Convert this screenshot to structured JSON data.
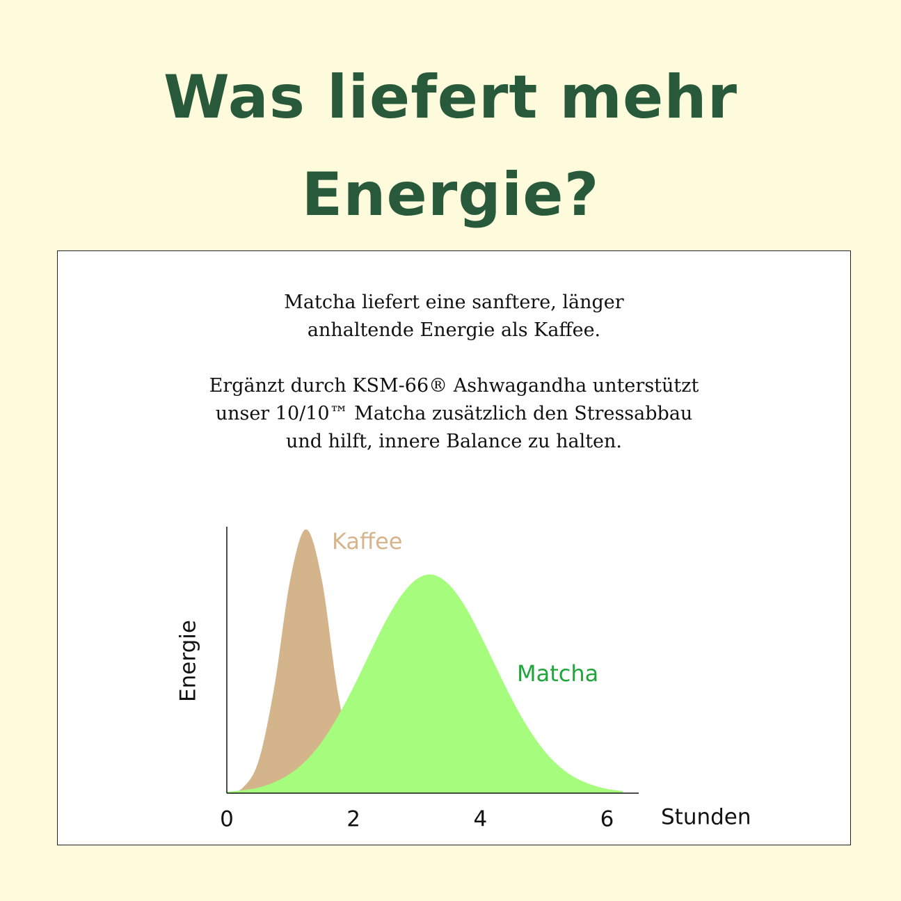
{
  "intro": {
    "paragraphs": [
      [
        "Matcha liefert eine sanftere, länger",
        "anhaltende Energie als Kaffee."
      ],
      [
        "Ergänzt durch KSM-66® Ashwagandha unterstützt",
        "unser 10/10™ Matcha zusätzlich den Stressabbau",
        "und hilft, innere Balance zu halten."
      ]
    ]
  },
  "chart_data": {
    "type": "area",
    "title": "Was liefert mehr Energie?",
    "x_label": "Stunden",
    "y_label": "Energie",
    "x": [
      0,
      0.25,
      0.5,
      0.75,
      1,
      1.25,
      1.5,
      1.75,
      2,
      2.25,
      2.5,
      2.75,
      3,
      3.25,
      3.5,
      3.75,
      4,
      4.25,
      4.5,
      4.75,
      5,
      5.25,
      5.5,
      5.75,
      6,
      6.25
    ],
    "series": [
      {
        "name": "Kaffee",
        "color": "#d3b48b",
        "label_color": "#d6b58c",
        "values": [
          0,
          2,
          12,
          40,
          80,
          99,
          80,
          38,
          12,
          3,
          0,
          null,
          null,
          null,
          null,
          null,
          null,
          null,
          null,
          null,
          null,
          null,
          null,
          null,
          null,
          null
        ]
      },
      {
        "name": "Matcha",
        "color": "#a6fd7d",
        "label_color": "#1fa53a",
        "values": [
          0.5,
          1.1,
          2.1,
          4.1,
          7.3,
          12.2,
          19.3,
          28.7,
          39.9,
          52.2,
          64.2,
          74.1,
          80.4,
          82,
          78.4,
          70.5,
          59.5,
          47.3,
          35.2,
          24.7,
          16.2,
          10,
          5.8,
          3.2,
          1.6,
          0.8
        ]
      }
    ],
    "xlim": [
      0,
      6.5
    ],
    "ylim": [
      0,
      100
    ],
    "xticks": [
      0,
      2,
      4,
      6
    ]
  }
}
